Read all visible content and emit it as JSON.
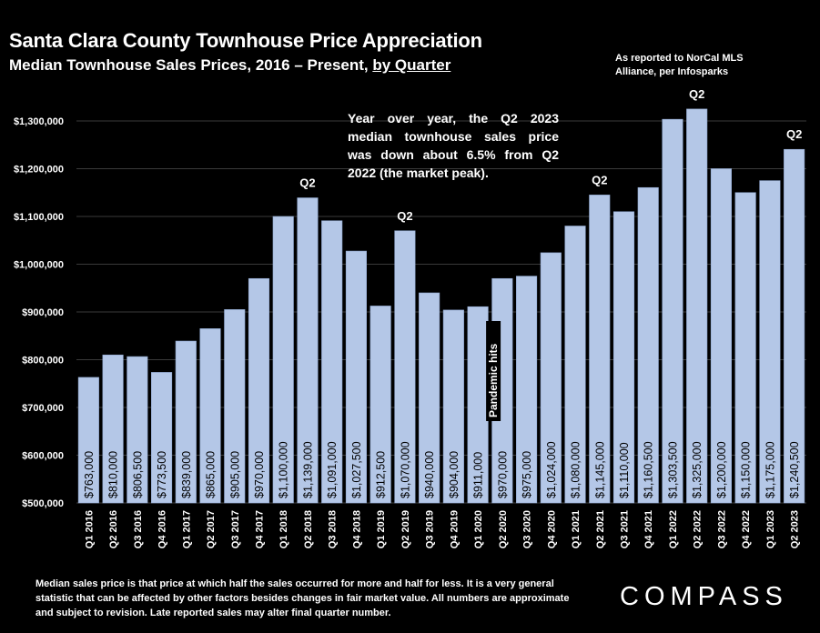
{
  "header": {
    "title": "Santa Clara County Townhouse Price Appreciation",
    "subtitle_prefix": "Median Townhouse Sales Prices, 2016 – Present, ",
    "subtitle_link": "by Quarter",
    "source_note": "As reported to NorCal MLS Alliance, per Infosparks"
  },
  "callout": "Year over year, the Q2 2023 median townhouse sales price was down about 6.5% from Q2 2022 (the market peak).",
  "footnote": "Median sales price is that price at which half the sales occurred for more and half for less. It is a very general statistic that can be affected by other factors besides changes in fair market value. All numbers are approximate and subject to revision. Late reported sales may alter final quarter number.",
  "brand": "COMPASS",
  "colors": {
    "background": "#000000",
    "bar": "#b4c7e7",
    "text": "#ffffff",
    "grid": "#3a3a3a"
  },
  "chart_data": {
    "type": "bar",
    "title": "Santa Clara County Townhouse Price Appreciation",
    "categories": [
      "Q1 2016",
      "Q2 2016",
      "Q3 2016",
      "Q4 2016",
      "Q1 2017",
      "Q2 2017",
      "Q3 2017",
      "Q4 2017",
      "Q1 2018",
      "Q2 2018",
      "Q3 2018",
      "Q4 2018",
      "Q1 2019",
      "Q2 2019",
      "Q3 2019",
      "Q4 2019",
      "Q1 2020",
      "Q2 2020",
      "Q3 2020",
      "Q4 2020",
      "Q1 2021",
      "Q2 2021",
      "Q3 2021",
      "Q4 2021",
      "Q1 2022",
      "Q2 2022",
      "Q3 2022",
      "Q4 2022",
      "Q1 2023",
      "Q2 2023"
    ],
    "values": [
      763000,
      810000,
      806500,
      773500,
      839000,
      865000,
      905000,
      970000,
      1100000,
      1139000,
      1091000,
      1027500,
      912500,
      1070000,
      940000,
      904000,
      911000,
      970000,
      975000,
      1024000,
      1080000,
      1145000,
      1110000,
      1160500,
      1303500,
      1325000,
      1200000,
      1150000,
      1175000,
      1240500
    ],
    "value_labels": [
      "$763,000",
      "$810,000",
      "$806,500",
      "$773,500",
      "$839,000",
      "$865,000",
      "$905,000",
      "$970,000",
      "$1,100,000",
      "$1,139,000",
      "$1,091,000",
      "$1,027,500",
      "$912,500",
      "$1,070,000",
      "$940,000",
      "$904,000",
      "$911,000",
      "$970,000",
      "$975,000",
      "$1,024,000",
      "$1,080,000",
      "$1,145,000",
      "$1,110,000",
      "$1,160,500",
      "$1,303,500",
      "$1,325,000",
      "$1,200,000",
      "$1,150,000",
      "$1,175,000",
      "$1,240,500"
    ],
    "ylim": [
      500000,
      1350000
    ],
    "y_ticks": [
      500000,
      600000,
      700000,
      800000,
      900000,
      1000000,
      1100000,
      1200000,
      1300000
    ],
    "y_tick_labels": [
      "$500,000",
      "$600,000",
      "$700,000",
      "$800,000",
      "$900,000",
      "$1,000,000",
      "$1,100,000",
      "$1,200,000",
      "$1,300,000"
    ],
    "grid": true,
    "annotations": [
      {
        "category": "Q2 2018",
        "text": "Q2"
      },
      {
        "category": "Q2 2019",
        "text": "Q2"
      },
      {
        "category": "Q2 2021",
        "text": "Q2"
      },
      {
        "category": "Q2 2022",
        "text": "Q2"
      },
      {
        "category": "Q2 2023",
        "text": "Q2"
      }
    ],
    "event_note": {
      "category": "Q1 2020",
      "text": "Pandemic hits"
    }
  }
}
